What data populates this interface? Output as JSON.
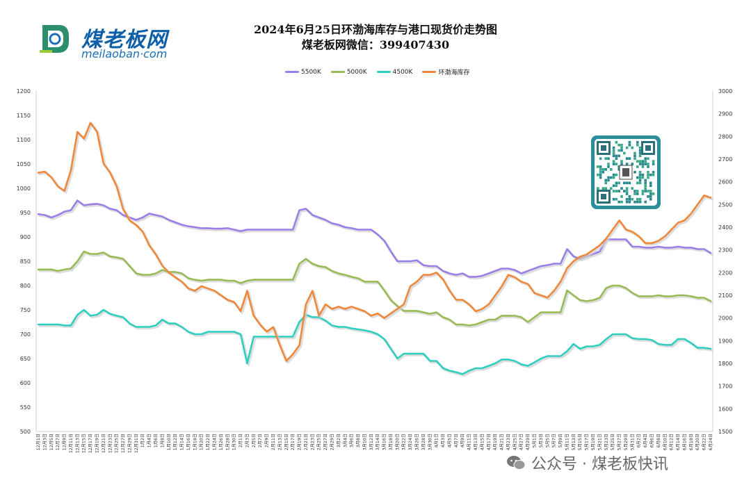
{
  "logo": {
    "brand": "煤老板网",
    "domain": "meilaoban·com"
  },
  "header": {
    "title_line1": "2024年6月25日环渤海库存与港口现货价走势图",
    "title_line2": "煤老板网微信：399407430"
  },
  "watermark": {
    "text": "公众号 · 煤老板快讯"
  },
  "colors": {
    "s5500": "#9b7fe8",
    "s5000": "#99bb55",
    "s4500": "#2fcfc0",
    "inventory": "#f0883a"
  },
  "chart_data": {
    "type": "line",
    "title": "2024年6月25日环渤海库存与港口现货价走势图",
    "left_axis": {
      "range": [
        500,
        1200
      ],
      "ticks": [
        "500",
        "550",
        "600",
        "650",
        "700",
        "750",
        "800",
        "850",
        "900",
        "950",
        "1000",
        "1050",
        "1100",
        "1150",
        "1200"
      ]
    },
    "right_axis": {
      "range": [
        1500,
        3000
      ],
      "ticks": [
        "1500",
        "1600",
        "1700",
        "1800",
        "1900",
        "2000",
        "2100",
        "2200",
        "2300",
        "2400",
        "2500",
        "2600",
        "2700",
        "2800",
        "2900",
        "3000"
      ]
    },
    "x_labels": [
      "12月1日",
      "12月3日",
      "12月5日",
      "12月7日",
      "12月9日",
      "12月11日",
      "12月13日",
      "12月15日",
      "12月17日",
      "12月19日",
      "12月21日",
      "12月23日",
      "12月25日",
      "12月27日",
      "12月29日",
      "12月31日",
      "1月2日",
      "1月4日",
      "1月6日",
      "1月8日",
      "1月10日",
      "1月12日",
      "1月14日",
      "1月16日",
      "1月18日",
      "1月20日",
      "1月22日",
      "1月24日",
      "1月26日",
      "1月28日",
      "1月30日",
      "2月1日",
      "2月3日",
      "2月5日",
      "2月7日",
      "2月9日",
      "2月11日",
      "2月13日",
      "2月15日",
      "2月17日",
      "2月19日",
      "2月21日",
      "2月23日",
      "2月25日",
      "2月27日",
      "2月29日",
      "3月2日",
      "3月4日",
      "3月6日",
      "3月8日",
      "3月10日",
      "3月12日",
      "3月14日",
      "3月16日",
      "3月18日",
      "3月20日",
      "3月22日",
      "3月24日",
      "3月26日",
      "3月28日",
      "3月30日",
      "4月1日",
      "4月3日",
      "4月5日",
      "4月7日",
      "4月9日",
      "4月11日",
      "4月13日",
      "4月15日",
      "4月17日",
      "4月19日",
      "4月21日",
      "4月23日",
      "4月25日",
      "4月27日",
      "4月29日",
      "5月1日",
      "5月3日",
      "5月5日",
      "5月7日",
      "5月9日",
      "5月11日",
      "5月13日",
      "5月15日",
      "5月17日",
      "5月19日",
      "5月21日",
      "5月23日",
      "5月25日",
      "5月27日",
      "5月29日",
      "5月31日",
      "6月2日",
      "6月4日",
      "6月6日",
      "6月8日",
      "6月10日",
      "6月12日",
      "6月14日",
      "6月16日",
      "6月18日",
      "6月20日",
      "6月22日",
      "6月24日"
    ],
    "series": [
      {
        "name": "5500K",
        "axis": "left",
        "color": "#9b7fe8",
        "values": [
          947,
          945,
          940,
          945,
          952,
          955,
          975,
          965,
          967,
          968,
          965,
          958,
          955,
          945,
          940,
          935,
          940,
          948,
          945,
          942,
          935,
          930,
          925,
          922,
          920,
          918,
          918,
          917,
          917,
          918,
          915,
          912,
          915,
          915,
          915,
          915,
          915,
          915,
          915,
          915,
          955,
          958,
          945,
          940,
          935,
          928,
          925,
          920,
          918,
          915,
          915,
          915,
          905,
          892,
          870,
          850,
          850,
          850,
          852,
          842,
          840,
          840,
          830,
          825,
          822,
          825,
          818,
          818,
          820,
          825,
          830,
          835,
          835,
          832,
          825,
          830,
          835,
          840,
          842,
          845,
          845,
          875,
          860,
          855,
          860,
          865,
          870,
          895,
          895,
          895,
          895,
          880,
          880,
          878,
          878,
          880,
          878,
          878,
          880,
          878,
          878,
          875,
          875,
          867
        ]
      },
      {
        "name": "5000K",
        "axis": "left",
        "color": "#99bb55",
        "values": [
          833,
          833,
          833,
          830,
          833,
          835,
          850,
          870,
          865,
          865,
          868,
          860,
          858,
          855,
          840,
          825,
          822,
          822,
          825,
          832,
          828,
          828,
          825,
          815,
          812,
          810,
          812,
          812,
          812,
          810,
          810,
          805,
          810,
          812,
          812,
          812,
          812,
          812,
          812,
          812,
          845,
          855,
          845,
          840,
          838,
          830,
          825,
          822,
          818,
          815,
          808,
          808,
          808,
          790,
          770,
          758,
          748,
          748,
          748,
          745,
          742,
          745,
          735,
          730,
          720,
          720,
          718,
          720,
          725,
          730,
          730,
          738,
          738,
          738,
          735,
          725,
          735,
          745,
          745,
          745,
          745,
          790,
          780,
          770,
          768,
          770,
          775,
          795,
          800,
          800,
          795,
          785,
          778,
          778,
          778,
          780,
          778,
          778,
          780,
          780,
          778,
          775,
          775,
          768
        ]
      },
      {
        "name": "4500K",
        "axis": "left",
        "color": "#2fcfc0",
        "values": [
          720,
          720,
          720,
          720,
          718,
          718,
          740,
          750,
          738,
          740,
          750,
          742,
          738,
          735,
          722,
          715,
          715,
          715,
          718,
          730,
          722,
          722,
          715,
          705,
          700,
          700,
          705,
          705,
          705,
          705,
          705,
          700,
          640,
          695,
          695,
          695,
          695,
          695,
          695,
          695,
          725,
          740,
          735,
          735,
          728,
          718,
          715,
          715,
          712,
          710,
          708,
          705,
          700,
          690,
          670,
          650,
          660,
          660,
          660,
          660,
          645,
          645,
          630,
          625,
          622,
          618,
          625,
          630,
          630,
          635,
          640,
          648,
          648,
          645,
          638,
          635,
          642,
          650,
          655,
          655,
          655,
          665,
          680,
          670,
          675,
          675,
          678,
          690,
          700,
          700,
          700,
          692,
          690,
          690,
          688,
          680,
          678,
          678,
          690,
          690,
          682,
          672,
          672,
          670
        ]
      },
      {
        "name": "环渤海库存",
        "axis": "right",
        "color": "#f0883a",
        "values": [
          2640,
          2645,
          2620,
          2580,
          2560,
          2650,
          2820,
          2790,
          2860,
          2820,
          2680,
          2640,
          2580,
          2480,
          2430,
          2410,
          2380,
          2320,
          2280,
          2230,
          2200,
          2180,
          2160,
          2130,
          2120,
          2140,
          2130,
          2120,
          2100,
          2080,
          2070,
          2030,
          2120,
          2010,
          1970,
          1940,
          1960,
          1880,
          1810,
          1840,
          1880,
          2060,
          2120,
          2010,
          2060,
          2040,
          2050,
          2040,
          2050,
          2040,
          2030,
          2010,
          2020,
          2000,
          2020,
          2040,
          2060,
          2140,
          2160,
          2190,
          2190,
          2200,
          2170,
          2120,
          2080,
          2080,
          2060,
          2030,
          2040,
          2060,
          2100,
          2140,
          2190,
          2180,
          2160,
          2150,
          2110,
          2100,
          2090,
          2120,
          2160,
          2220,
          2250,
          2270,
          2280,
          2300,
          2320,
          2350,
          2390,
          2430,
          2390,
          2380,
          2360,
          2330,
          2330,
          2340,
          2360,
          2390,
          2420,
          2430,
          2460,
          2500,
          2540,
          2530
        ]
      }
    ]
  }
}
